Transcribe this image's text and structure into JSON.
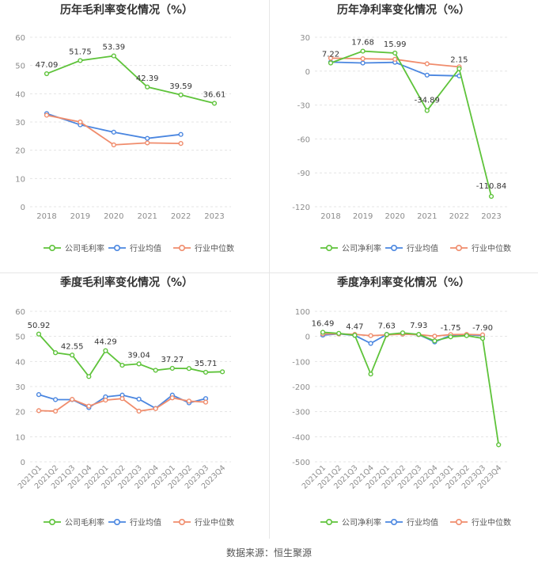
{
  "colors": {
    "company": "#5ec33a",
    "average": "#4a86e0",
    "median": "#f08c6c",
    "grid": "#e4e4e4",
    "axis_text": "#8c8c8c",
    "title": "#333333"
  },
  "source": "数据来源：恒生聚源",
  "chart_data": [
    {
      "type": "line",
      "title": "历年毛利率变化情况（%）",
      "categories": [
        "2018",
        "2019",
        "2020",
        "2021",
        "2022",
        "2023"
      ],
      "ylim": [
        0,
        60
      ],
      "yticks": [
        0,
        10,
        20,
        30,
        40,
        50,
        60
      ],
      "series": [
        {
          "name": "公司毛利率",
          "key": "company",
          "values": [
            47.09,
            51.75,
            53.39,
            42.39,
            39.59,
            36.61
          ],
          "labels": [
            "47.09",
            "51.75",
            "53.39",
            "42.39",
            "39.59",
            "36.61"
          ]
        },
        {
          "name": "行业均值",
          "key": "average",
          "values": [
            33.0,
            29.0,
            26.4,
            24.2,
            25.6,
            null
          ]
        },
        {
          "name": "行业中位数",
          "key": "median",
          "values": [
            32.4,
            30.0,
            21.9,
            22.6,
            22.4,
            null
          ]
        }
      ],
      "legend": [
        "公司毛利率",
        "行业均值",
        "行业中位数"
      ]
    },
    {
      "type": "line",
      "title": "历年净利率变化情况（%）",
      "categories": [
        "2018",
        "2019",
        "2020",
        "2021",
        "2022",
        "2023"
      ],
      "ylim": [
        -120,
        30
      ],
      "yticks": [
        -120,
        -90,
        -60,
        -30,
        0,
        30
      ],
      "series": [
        {
          "name": "公司净利率",
          "key": "company",
          "values": [
            7.22,
            17.68,
            15.99,
            -34.89,
            2.15,
            -110.84
          ],
          "labels": [
            "7.22",
            "17.68",
            "15.99",
            "-34.89",
            "2.15",
            "-110.84"
          ]
        },
        {
          "name": "行业均值",
          "key": "average",
          "values": [
            8.0,
            7.2,
            7.8,
            -3.5,
            -4.2,
            null
          ]
        },
        {
          "name": "行业中位数",
          "key": "median",
          "values": [
            11.5,
            11.0,
            10.5,
            6.5,
            3.8,
            null
          ]
        }
      ],
      "legend": [
        "公司净利率",
        "行业均值",
        "行业中位数"
      ]
    },
    {
      "type": "line",
      "title": "季度毛利率变化情况（%）",
      "categories": [
        "2021Q1",
        "2021Q2",
        "2021Q3",
        "2021Q4",
        "2022Q1",
        "2022Q2",
        "2022Q3",
        "2022Q4",
        "2023Q1",
        "2023Q2",
        "2023Q3",
        "2023Q4"
      ],
      "ylim": [
        0,
        60
      ],
      "yticks": [
        0,
        10,
        20,
        30,
        40,
        50,
        60
      ],
      "series": [
        {
          "name": "公司毛利率",
          "key": "company",
          "values": [
            50.92,
            43.5,
            42.55,
            34.0,
            44.29,
            38.5,
            39.04,
            36.5,
            37.27,
            37.2,
            35.71,
            35.9
          ],
          "labels": [
            "50.92",
            "",
            "42.55",
            "",
            "44.29",
            "",
            "39.04",
            "",
            "37.27",
            "",
            "35.71",
            ""
          ]
        },
        {
          "name": "行业均值",
          "key": "average",
          "values": [
            26.8,
            24.8,
            24.8,
            21.6,
            25.9,
            26.6,
            25.0,
            21.3,
            26.6,
            23.5,
            25.2,
            null
          ]
        },
        {
          "name": "行业中位数",
          "key": "median",
          "values": [
            20.4,
            20.2,
            24.9,
            22.2,
            24.6,
            25.2,
            20.2,
            21.2,
            25.5,
            24.2,
            23.8,
            null
          ]
        }
      ],
      "legend": [
        "公司毛利率",
        "行业均值",
        "行业中位数"
      ]
    },
    {
      "type": "line",
      "title": "季度净利率变化情况（%）",
      "categories": [
        "2021Q1",
        "2021Q2",
        "2021Q3",
        "2021Q4",
        "2022Q1",
        "2022Q2",
        "2022Q3",
        "2022Q4",
        "2023Q1",
        "2023Q2",
        "2023Q3",
        "2023Q4"
      ],
      "ylim": [
        -500,
        100
      ],
      "yticks": [
        -500,
        -400,
        -300,
        -200,
        -100,
        0,
        100
      ],
      "series": [
        {
          "name": "公司净利率",
          "key": "company",
          "values": [
            16.49,
            12.0,
            4.47,
            -150.0,
            7.63,
            14.0,
            7.93,
            -18.0,
            -1.75,
            3.0,
            -7.9,
            -432.0
          ],
          "labels": [
            "16.49",
            "",
            "4.47",
            "",
            "7.63",
            "",
            "7.93",
            "",
            "-1.75",
            "",
            "-7.90",
            ""
          ]
        },
        {
          "name": "行业均值",
          "key": "average",
          "values": [
            5.0,
            10.0,
            4.0,
            -28.0,
            8.0,
            9.0,
            7.0,
            -22.0,
            4.0,
            7.0,
            3.0,
            null
          ]
        },
        {
          "name": "行业中位数",
          "key": "median",
          "values": [
            10.0,
            10.0,
            8.0,
            3.0,
            6.0,
            9.0,
            7.0,
            1.0,
            7.0,
            8.0,
            6.0,
            null
          ]
        }
      ],
      "legend": [
        "公司净利率",
        "行业均值",
        "行业中位数"
      ]
    }
  ]
}
